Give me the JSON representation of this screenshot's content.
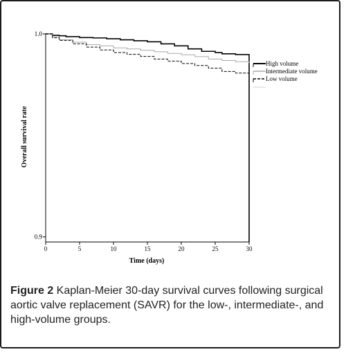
{
  "chart_data": {
    "type": "line",
    "title": "",
    "xlabel": "Time (days)",
    "ylabel": "Overall survival rate",
    "xlim": [
      0,
      30
    ],
    "ylim": [
      0.8975,
      1.0
    ],
    "xticks": [
      "0",
      "5",
      "10",
      "15",
      "20",
      "25",
      "30"
    ],
    "yticks": [
      "0.9",
      "1.0"
    ],
    "grid": false,
    "legend_position": "top-right",
    "series": [
      {
        "name": "High volume",
        "color": "#000000",
        "dash": "solid",
        "width": 1.6,
        "points": [
          [
            0,
            1.0
          ],
          [
            1,
            0.9993
          ],
          [
            2,
            0.9991
          ],
          [
            3,
            0.9986
          ],
          [
            5,
            0.9982
          ],
          [
            7,
            0.998
          ],
          [
            9,
            0.9976
          ],
          [
            11,
            0.9971
          ],
          [
            13,
            0.9966
          ],
          [
            15,
            0.9961
          ],
          [
            17,
            0.9951
          ],
          [
            19,
            0.9941
          ],
          [
            21,
            0.9926
          ],
          [
            23,
            0.9914
          ],
          [
            25,
            0.9908
          ],
          [
            26,
            0.9902
          ],
          [
            28,
            0.9898
          ],
          [
            30,
            0.9898
          ]
        ],
        "end_drop": 0.8975
      },
      {
        "name": "Intermediate volume",
        "color": "#a8a8a8",
        "dash": "solid",
        "width": 1.0,
        "points": [
          [
            0,
            1.0
          ],
          [
            1,
            0.9986
          ],
          [
            2,
            0.9971
          ],
          [
            4,
            0.9959
          ],
          [
            6,
            0.9947
          ],
          [
            8,
            0.9941
          ],
          [
            10,
            0.9931
          ],
          [
            12,
            0.9926
          ],
          [
            14,
            0.9919
          ],
          [
            16,
            0.9912
          ],
          [
            18,
            0.9904
          ],
          [
            20,
            0.9897
          ],
          [
            22,
            0.9888
          ],
          [
            24,
            0.9876
          ],
          [
            26,
            0.9869
          ],
          [
            28,
            0.9863
          ],
          [
            30,
            0.9856
          ]
        ]
      },
      {
        "name": "Low volume",
        "color": "#000000",
        "dash": "4,2",
        "width": 1.0,
        "points": [
          [
            0,
            1.0
          ],
          [
            1,
            0.9981
          ],
          [
            2,
            0.9968
          ],
          [
            4,
            0.9951
          ],
          [
            6,
            0.9935
          ],
          [
            8,
            0.9921
          ],
          [
            10,
            0.9908
          ],
          [
            12,
            0.9899
          ],
          [
            14,
            0.9889
          ],
          [
            16,
            0.9876
          ],
          [
            18,
            0.9866
          ],
          [
            20,
            0.9854
          ],
          [
            22,
            0.9844
          ],
          [
            24,
            0.9831
          ],
          [
            26,
            0.9815
          ],
          [
            28,
            0.9807
          ],
          [
            30,
            0.9799
          ]
        ]
      }
    ]
  },
  "caption": {
    "figure_label": "Figure 2",
    "text": " Kaplan-Meier 30-day survival curves following surgical aortic valve replacement (SAVR) for the low-, intermediate-, and high-volume groups."
  }
}
